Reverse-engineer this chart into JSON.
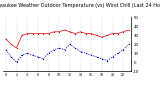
{
  "title": "Milwaukee Weather Outdoor Temperature (vs) Wind Chill (Last 24 Hours)",
  "temp": [
    26,
    20,
    16,
    30,
    32,
    32,
    32,
    32,
    32,
    34,
    34,
    36,
    34,
    32,
    34,
    32,
    32,
    30,
    28,
    30,
    32,
    32,
    34,
    36
  ],
  "wind_chill": [
    14,
    6,
    0,
    8,
    10,
    8,
    6,
    4,
    10,
    14,
    16,
    14,
    20,
    16,
    12,
    10,
    8,
    6,
    4,
    2,
    6,
    10,
    14,
    20
  ],
  "temp_color": "#dd0000",
  "wind_chill_color": "#0000cc",
  "ylim_min": -10,
  "ylim_max": 50,
  "ytick_labels": [
    "50",
    "40",
    "30",
    "20",
    "10",
    "0",
    "-10"
  ],
  "ytick_vals": [
    50,
    40,
    30,
    20,
    10,
    0,
    -10
  ],
  "bg_color": "#ffffff",
  "grid_color": "#888888",
  "title_fontsize": 3.5,
  "tick_fontsize": 2.8,
  "num_points": 24
}
